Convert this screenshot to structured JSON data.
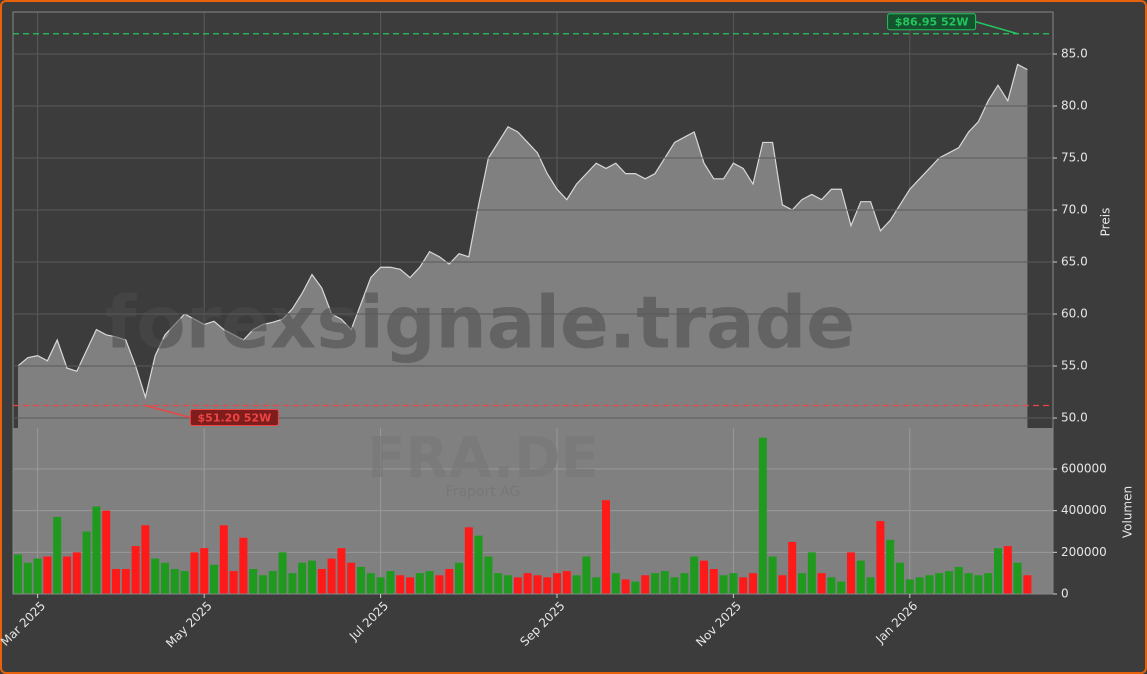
{
  "chart_data": {
    "type": "area",
    "watermark": "forexsignale.trade",
    "symbol": "FRA.DE",
    "company": "Fraport AG",
    "ylabel": "Preis",
    "y2label": "Volumen",
    "categories": [
      null,
      null,
      "Mar 2025",
      null,
      null,
      null,
      null,
      null,
      null,
      null,
      null,
      null,
      null,
      null,
      null,
      null,
      null,
      null,
      null,
      "May 2025",
      null,
      null,
      null,
      null,
      null,
      null,
      null,
      null,
      null,
      null,
      null,
      null,
      null,
      null,
      null,
      null,
      null,
      "Jul 2025",
      null,
      null,
      null,
      null,
      null,
      null,
      null,
      null,
      null,
      null,
      null,
      null,
      null,
      null,
      null,
      null,
      null,
      "Sep 2025",
      null,
      null,
      null,
      null,
      null,
      null,
      null,
      null,
      null,
      null,
      null,
      null,
      null,
      null,
      null,
      null,
      null,
      "Nov 2025",
      null,
      null,
      null,
      null,
      null,
      null,
      null,
      null,
      null,
      null,
      null,
      null,
      null,
      null,
      null,
      null,
      null,
      "Jan 2026",
      null,
      null,
      null,
      null,
      null,
      null,
      null,
      null,
      null,
      null,
      null,
      null
    ],
    "series": [
      {
        "name": "Preis",
        "color": "#808080",
        "line_color": "#d8d8d8",
        "values": [
          55.0,
          55.8,
          56.0,
          55.5,
          57.5,
          54.8,
          54.5,
          56.5,
          58.5,
          58.0,
          57.8,
          57.5,
          55.0,
          52.0,
          56.0,
          58.0,
          59.0,
          60.0,
          59.5,
          59.0,
          59.3,
          58.5,
          58.0,
          57.5,
          58.5,
          59.0,
          59.2,
          59.5,
          60.5,
          62.0,
          63.8,
          62.5,
          60.0,
          59.5,
          58.5,
          61.0,
          63.5,
          64.5,
          64.5,
          64.3,
          63.5,
          64.5,
          66.0,
          65.5,
          64.8,
          65.8,
          65.5,
          70.5,
          75.0,
          76.5,
          78.0,
          77.5,
          76.5,
          75.5,
          73.5,
          72.0,
          71.0,
          72.5,
          73.5,
          74.5,
          74.0,
          74.5,
          73.5,
          73.5,
          73.0,
          73.5,
          75.0,
          76.5,
          77.0,
          77.5,
          74.5,
          73.0,
          73.0,
          74.5,
          74.0,
          72.5,
          76.5,
          76.5,
          70.5,
          70.0,
          71.0,
          71.5,
          71.0,
          72.0,
          72.0,
          68.5,
          70.8,
          70.8,
          68.0,
          69.0,
          70.5,
          72.0,
          73.0,
          74.0,
          75.0,
          75.5,
          76.0,
          77.5,
          78.5,
          80.5,
          82.0,
          80.5,
          84.0,
          83.5
        ]
      },
      {
        "name": "Volumen",
        "axis": "y2",
        "up_color": "#1f9a1f",
        "down_color": "#ff1a1a",
        "values": [
          190000,
          150000,
          170000,
          180000,
          370000,
          180000,
          200000,
          300000,
          420000,
          400000,
          120000,
          120000,
          230000,
          330000,
          170000,
          150000,
          120000,
          110000,
          200000,
          220000,
          140000,
          330000,
          110000,
          270000,
          120000,
          90000,
          110000,
          200000,
          100000,
          150000,
          160000,
          120000,
          170000,
          220000,
          150000,
          130000,
          100000,
          80000,
          110000,
          90000,
          80000,
          100000,
          110000,
          90000,
          120000,
          150000,
          320000,
          280000,
          180000,
          100000,
          90000,
          80000,
          100000,
          90000,
          80000,
          100000,
          110000,
          90000,
          180000,
          80000,
          450000,
          100000,
          70000,
          60000,
          90000,
          100000,
          110000,
          80000,
          100000,
          180000,
          160000,
          120000,
          90000,
          100000,
          80000,
          100000,
          750000,
          180000,
          90000,
          250000,
          100000,
          200000,
          100000,
          80000,
          60000,
          200000,
          160000,
          80000,
          350000,
          260000,
          150000,
          70000,
          80000,
          90000,
          100000,
          110000,
          130000,
          100000,
          90000,
          100000,
          220000,
          230000,
          150000,
          90000
        ]
      }
    ],
    "ylim": [
      49.04,
      89.04
    ],
    "yticks": [
      {
        "value": 50,
        "label": "50.0"
      },
      {
        "value": 55,
        "label": "55.0"
      },
      {
        "value": 60,
        "label": "60.0"
      },
      {
        "value": 65,
        "label": "65.0"
      },
      {
        "value": 70,
        "label": "70.0"
      },
      {
        "value": 75,
        "label": "75.0"
      },
      {
        "value": 80,
        "label": "80.0"
      },
      {
        "value": 85,
        "label": "85.0"
      }
    ],
    "y2lim": [
      0,
      796800
    ],
    "y2ticks": [
      0,
      200000,
      400000,
      600000
    ],
    "grid": true,
    "annotations": [
      {
        "value": 86.95,
        "label": "$86.95 52W",
        "index": 102,
        "color": "#22c55e"
      },
      {
        "value": 51.2,
        "label": "$51.20 52W",
        "index": 13,
        "color": "#ef4444"
      }
    ]
  }
}
